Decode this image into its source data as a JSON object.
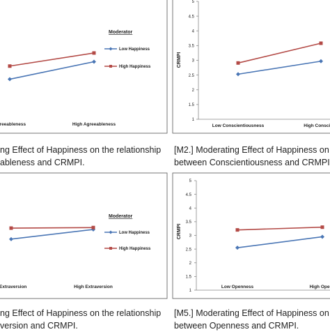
{
  "chart_data": [
    {
      "type": "line",
      "id": "tl",
      "title": "",
      "categories": [
        "Agreeableness",
        "High Agreeableness"
      ],
      "series": [
        {
          "name": "Low Happiness",
          "values": [
            2.4,
            3.0
          ],
          "color": "#4a76b5",
          "marker": "diamond"
        },
        {
          "name": "High Happiness",
          "values": [
            2.85,
            3.3
          ],
          "color": "#b34a46",
          "marker": "square"
        }
      ],
      "legend_title": "Moderator",
      "legend_position": "right",
      "caption_lines": [
        "ng Effect of Happiness on the relationship",
        "ableness and CRMPI."
      ]
    },
    {
      "type": "line",
      "id": "tr",
      "title": "",
      "ylabel": "CRMPI",
      "yticks": [
        "5",
        "4.5",
        "4",
        "3.5",
        "3",
        "2.5",
        "2",
        "1.5",
        "1"
      ],
      "ylim": [
        1,
        5
      ],
      "categories": [
        "Low Conscientiousness",
        "High Conscienti"
      ],
      "series": [
        {
          "name": "",
          "values": [
            2.53,
            2.97
          ],
          "color": "#4a76b5",
          "marker": "diamond"
        },
        {
          "name": "",
          "values": [
            2.91,
            3.58
          ],
          "color": "#b34a46",
          "marker": "square"
        }
      ],
      "caption_lines": [
        "[M2.] Moderating Effect of Happiness on t",
        "between Conscientiousness and CRMPI."
      ]
    },
    {
      "type": "line",
      "id": "bl",
      "title": "",
      "categories": [
        "v Extraversion",
        "High Extraversion"
      ],
      "series": [
        {
          "name": "Low Happiness",
          "values": [
            2.7,
            3.05
          ],
          "color": "#4a76b5",
          "marker": "diamond"
        },
        {
          "name": "High Happiness",
          "values": [
            3.1,
            3.12
          ],
          "color": "#b34a46",
          "marker": "square"
        }
      ],
      "legend_title": "Moderator",
      "legend_position": "right",
      "caption_lines": [
        "ng Effect of Happiness on the relationship",
        "version and CRMPI."
      ]
    },
    {
      "type": "line",
      "id": "br",
      "title": "",
      "ylabel": "CRMPI",
      "yticks": [
        "5",
        "4.5",
        "4",
        "3.5",
        "3",
        "2.5",
        "2",
        "1.5",
        "1"
      ],
      "ylim": [
        1,
        5
      ],
      "categories": [
        "Low Openness",
        "High Openn"
      ],
      "series": [
        {
          "name": "",
          "values": [
            2.55,
            2.95
          ],
          "color": "#4a76b5",
          "marker": "diamond"
        },
        {
          "name": "",
          "values": [
            3.2,
            3.3
          ],
          "color": "#b34a46",
          "marker": "square"
        }
      ],
      "caption_lines": [
        "[M5.] Moderating Effect of Happiness on t",
        "between Openness and CRMPI."
      ]
    }
  ]
}
